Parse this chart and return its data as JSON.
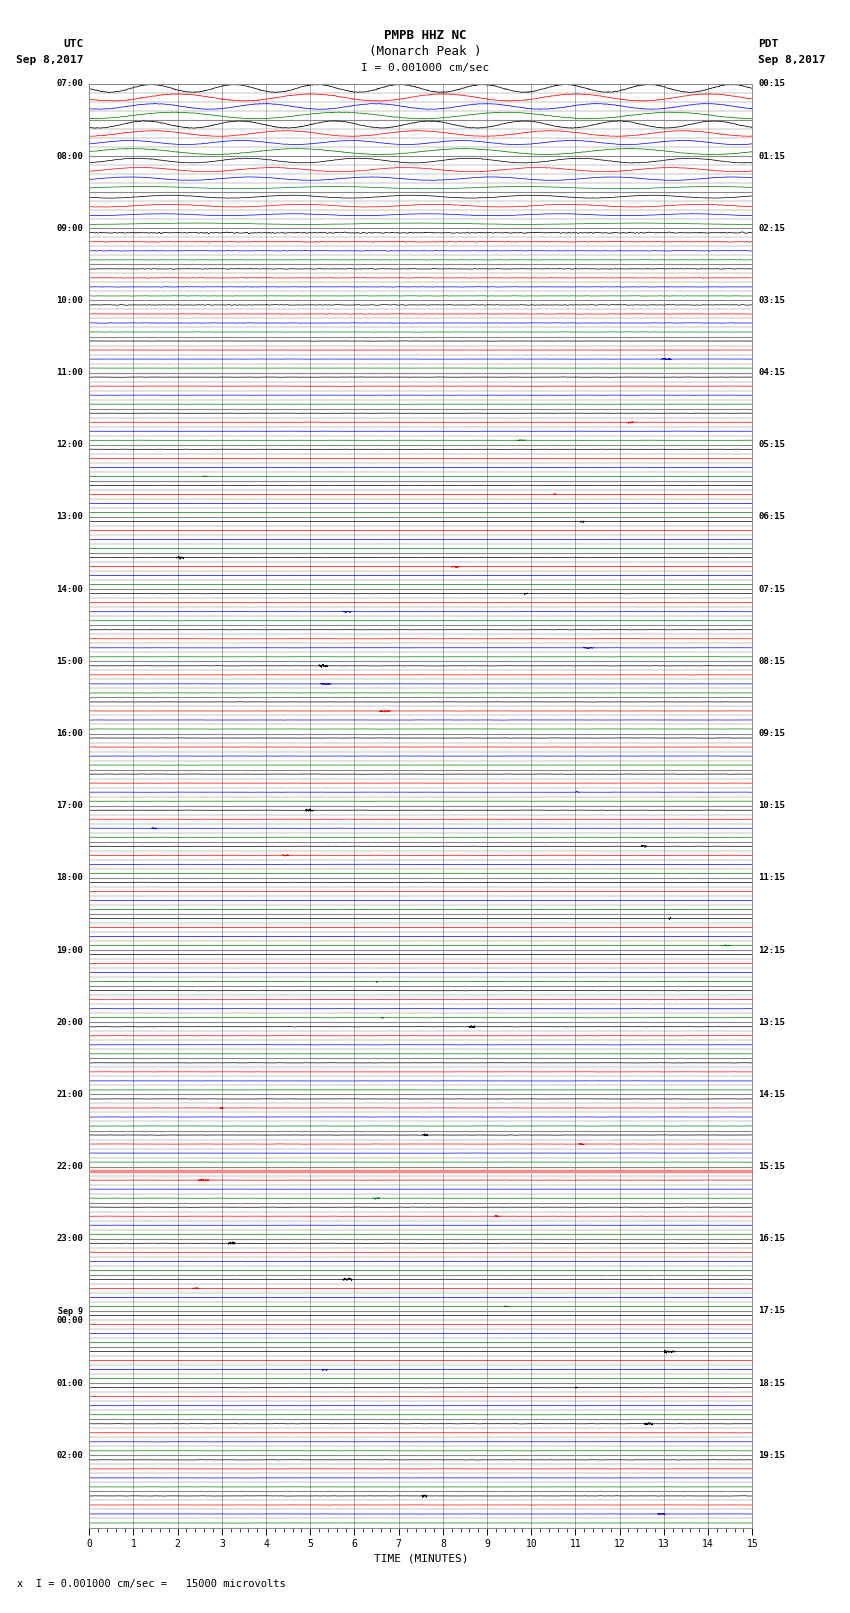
{
  "title_line1": "PMPB HHZ NC",
  "title_line2": "(Monarch Peak )",
  "scale_text": "I = 0.001000 cm/sec",
  "utc_label": "UTC",
  "utc_date": "Sep 8,2017",
  "pdt_label": "PDT",
  "pdt_date": "Sep 8,2017",
  "footer_text": "x  I = 0.001000 cm/sec =   15000 microvolts",
  "xlabel": "TIME (MINUTES)",
  "n_minutes": 15,
  "bg_color": "#ffffff",
  "grid_color": "#aaaaaa",
  "trace_colors": [
    "#000000",
    "#ff0000",
    "#0000ff",
    "#008000"
  ],
  "salmon_color": "#ff8888",
  "salmon_row_index": 120,
  "n_total_rows": 160,
  "left_tick_labels": {
    "0": "07:00",
    "8": "08:00",
    "16": "09:00",
    "24": "10:00",
    "32": "11:00",
    "40": "12:00",
    "48": "13:00",
    "56": "14:00",
    "64": "15:00",
    "72": "16:00",
    "80": "17:00",
    "88": "18:00",
    "96": "19:00",
    "104": "20:00",
    "112": "21:00",
    "120": "22:00",
    "128": "23:00",
    "136": "Sep 9\n00:00",
    "144": "01:00",
    "152": "02:00"
  },
  "right_tick_labels": {
    "0": "00:15",
    "8": "01:15",
    "16": "02:15",
    "24": "03:15",
    "32": "04:15",
    "40": "05:15",
    "48": "06:15",
    "56": "07:15",
    "64": "08:15",
    "72": "09:15",
    "80": "10:15",
    "88": "11:15",
    "96": "12:15",
    "104": "13:15",
    "112": "14:15",
    "120": "15:15",
    "128": "16:15",
    "136": "17:15",
    "144": "18:15",
    "152": "19:15"
  }
}
